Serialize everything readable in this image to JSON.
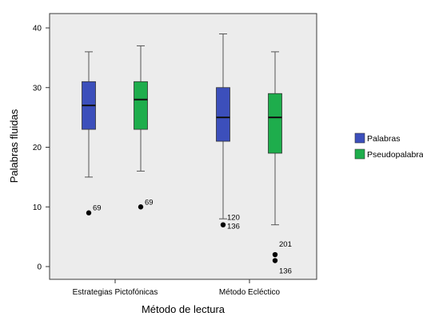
{
  "chart_data": {
    "type": "boxplot",
    "xlabel": "Método de lectura",
    "ylabel": "Palabras fluidas",
    "ylim": [
      -2,
      42
    ],
    "yticks": [
      0,
      10,
      20,
      30,
      40
    ],
    "categories": [
      "Estrategias Pictofónicas",
      "Método Ecléctico"
    ],
    "legend_position": "right",
    "plot_background": "#ececec",
    "series": [
      {
        "name": "Palabras",
        "color": "#3c4fbb",
        "boxes": [
          {
            "whisker_low": 15,
            "q1": 23,
            "median": 27,
            "q3": 31,
            "whisker_high": 36,
            "outliers": [
              {
                "value": 9,
                "label": "69"
              }
            ]
          },
          {
            "whisker_low": 8,
            "q1": 21,
            "median": 25,
            "q3": 30,
            "whisker_high": 39,
            "outliers": [
              {
                "value": 7,
                "label": "120\n136"
              }
            ]
          }
        ]
      },
      {
        "name": "Pseudopalabras",
        "color": "#1ead4c",
        "boxes": [
          {
            "whisker_low": 16,
            "q1": 23,
            "median": 28,
            "q3": 31,
            "whisker_high": 37,
            "outliers": [
              {
                "value": 10,
                "label": "69"
              }
            ]
          },
          {
            "whisker_low": 7,
            "q1": 19,
            "median": 25,
            "q3": 29,
            "whisker_high": 36,
            "outliers": [
              {
                "value": 2,
                "label": "201"
              },
              {
                "value": 1,
                "label": "136"
              }
            ]
          }
        ]
      }
    ]
  }
}
